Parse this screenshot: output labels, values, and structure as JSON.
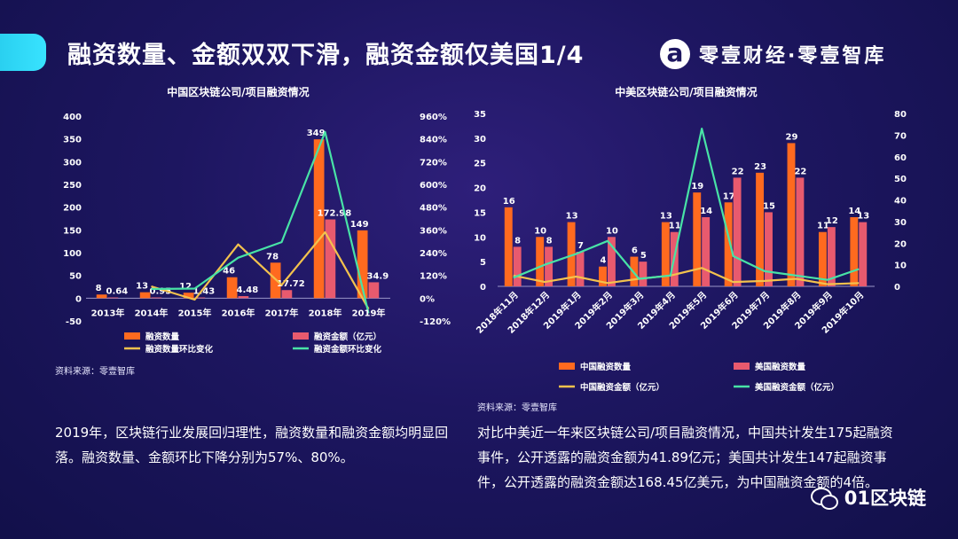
{
  "header": {
    "title": "融资数量、金额双双下滑，融资金额仅美国1/4",
    "brand": "零壹财经·零壹智库"
  },
  "colors": {
    "orange": "#ff6a1f",
    "pink": "#e85a6e",
    "yellow": "#f3c24d",
    "green": "#48e3a6",
    "accent": "#2ad0f0"
  },
  "chart_data": [
    {
      "type": "bar",
      "title": "中国区块链公司/项目融资情况",
      "categories": [
        "2013年",
        "2014年",
        "2015年",
        "2016年",
        "2017年",
        "2018年",
        "2019年"
      ],
      "y_left": {
        "range": [
          -50,
          400
        ],
        "ticks": [
          "400",
          "350",
          "300",
          "250",
          "200",
          "150",
          "100",
          "50",
          "0",
          "-50"
        ],
        "tick_values": [
          400,
          350,
          300,
          250,
          200,
          150,
          100,
          50,
          0,
          -50
        ]
      },
      "y_right": {
        "range": [
          -120,
          960
        ],
        "ticks": [
          "960%",
          "840%",
          "720%",
          "600%",
          "480%",
          "360%",
          "240%",
          "120%",
          "0%",
          "-120%"
        ],
        "tick_values": [
          960,
          840,
          720,
          600,
          480,
          360,
          240,
          120,
          0,
          -120
        ]
      },
      "bars": [
        {
          "name": "融资数量",
          "color": "#ff6a1f",
          "values": [
            8,
            13,
            12,
            46,
            78,
            349,
            149
          ],
          "labels": [
            "8",
            "13",
            "12",
            "46",
            "78",
            "349",
            "149"
          ]
        },
        {
          "name": "融资金额（亿元）",
          "color": "#e85a6e",
          "values": [
            0.64,
            0.95,
            1.43,
            4.48,
            17.72,
            172.98,
            34.9
          ],
          "labels": [
            "0.64",
            "0.95",
            "1.43",
            "4.48",
            "17.72",
            "172.98",
            "34.9"
          ]
        }
      ],
      "lines": [
        {
          "name": "融资数量环比变化",
          "color": "#f3c24d",
          "axis": "right",
          "values": [
            null,
            62.5,
            -7.7,
            283.3,
            69.6,
            347.4,
            -57.3
          ]
        },
        {
          "name": "融资金额环比变化",
          "color": "#48e3a6",
          "axis": "right",
          "values": [
            null,
            48.4,
            50.5,
            213.3,
            295.5,
            876.2,
            -79.8
          ]
        }
      ],
      "legend": [
        "融资数量",
        "融资金额（亿元）",
        "融资数量环比变化",
        "融资金额环比变化"
      ],
      "source": "资料来源：零壹智库"
    },
    {
      "type": "bar",
      "title": "中美区块链公司/项目融资情况",
      "categories": [
        "2018年11月",
        "2018年12月",
        "2019年1月",
        "2019年2月",
        "2019年3月",
        "2019年4月",
        "2019年5月",
        "2019年6月",
        "2019年7月",
        "2019年8月",
        "2019年9月",
        "2019年10月"
      ],
      "y_left": {
        "range": [
          0,
          35
        ],
        "ticks": [
          "35",
          "30",
          "25",
          "20",
          "15",
          "10",
          "5",
          "0"
        ],
        "tick_values": [
          35,
          30,
          25,
          20,
          15,
          10,
          5,
          0
        ]
      },
      "y_right": {
        "range": [
          0,
          80
        ],
        "ticks": [
          "80",
          "70",
          "60",
          "50",
          "40",
          "30",
          "20",
          "10",
          "0"
        ],
        "tick_values": [
          80,
          70,
          60,
          50,
          40,
          30,
          20,
          10,
          0
        ]
      },
      "bars": [
        {
          "name": "中国融资数量",
          "color": "#ff6a1f",
          "values": [
            16,
            10,
            13,
            4,
            6,
            13,
            19,
            17,
            23,
            29,
            11,
            14
          ],
          "labels": [
            "16",
            "10",
            "13",
            "4",
            "6",
            "13",
            "19",
            "17",
            "23",
            "29",
            "11",
            "14"
          ]
        },
        {
          "name": "美国融资数量",
          "color": "#e85a6e",
          "values": [
            8,
            8,
            7,
            10,
            5,
            11,
            14,
            22,
            15,
            22,
            12,
            13
          ],
          "labels": [
            "8",
            "8",
            "7",
            "10",
            "5",
            "11",
            "14",
            "22",
            "15",
            "22",
            "12",
            "13"
          ]
        }
      ],
      "lines": [
        {
          "name": "中国融资金额（亿元）",
          "color": "#f3c24d",
          "axis": "right",
          "values": [
            5,
            2,
            4.5,
            1.5,
            3.5,
            5,
            8.5,
            2,
            2.5,
            3.5,
            1,
            1.5
          ]
        },
        {
          "name": "美国融资金额（亿元）",
          "color": "#48e3a6",
          "axis": "right",
          "values": [
            4,
            10,
            15,
            21,
            3.5,
            5,
            73,
            14,
            7,
            5,
            3,
            8
          ]
        }
      ],
      "legend": [
        "中国融资数量",
        "美国融资数量",
        "中国融资金额（亿元）",
        "美国融资金额（亿元）"
      ],
      "source": "资料来源：零壹智库"
    }
  ],
  "text": {
    "left_paragraph": "2019年，区块链行业发展回归理性，融资数量和融资金额均明显回落。融资数量、金额环比下降分别为57%、80%。",
    "right_paragraph": "对比中美近一年来区块链公司/项目融资情况，中国共计发生175起融资事件，公开透露的融资金额为41.89亿元；美国共计发生147起融资事件，公开透露的融资金额达168.45亿美元，为中国融资金额的4倍。"
  },
  "watermark": "01区块链"
}
